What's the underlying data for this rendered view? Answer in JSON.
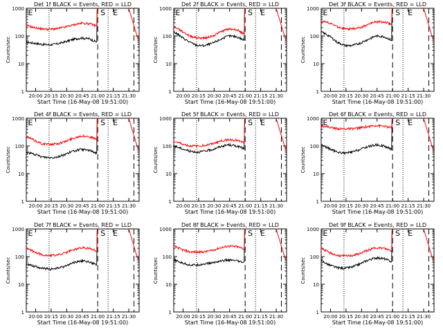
{
  "chart_data": [
    {
      "type": "line",
      "title": "Det 1f BLACK = Events, RED = LLD",
      "xlabel": "Start Time (16-May-08 19:51:00)",
      "ylabel": "Counts/sec",
      "ylim": [
        1,
        1000
      ],
      "yscale": "log",
      "markers": [
        "E",
        "S",
        "E"
      ],
      "black_base": [
        60,
        55,
        50,
        48,
        52,
        62,
        75,
        85,
        80,
        60
      ],
      "red_base": [
        240,
        200,
        180,
        175,
        185,
        210,
        250,
        290,
        280,
        230
      ]
    },
    {
      "type": "line",
      "title": "Det 2f BLACK = Events, RED = LLD",
      "xlabel": "Start Time (16-May-08 19:51:00)",
      "ylabel": "Counts/sec",
      "ylim": [
        1,
        1000
      ],
      "yscale": "log",
      "markers": [
        "E",
        "S",
        "E"
      ],
      "black_base": [
        140,
        90,
        60,
        45,
        45,
        55,
        75,
        100,
        95,
        70
      ],
      "red_base": [
        220,
        150,
        100,
        85,
        85,
        100,
        140,
        180,
        170,
        120
      ]
    },
    {
      "type": "line",
      "title": "Det 3f BLACK = Events, RED = LLD",
      "xlabel": "Start Time (16-May-08 19:51:00)",
      "ylabel": "Counts/sec",
      "ylim": [
        1,
        1000
      ],
      "yscale": "log",
      "markers": [
        "E",
        "S",
        "E"
      ],
      "black_base": [
        140,
        100,
        60,
        45,
        45,
        55,
        75,
        100,
        95,
        70
      ],
      "red_base": [
        350,
        300,
        220,
        180,
        180,
        200,
        260,
        330,
        320,
        260
      ]
    },
    {
      "type": "line",
      "title": "Det 4f BLACK = Events, RED = LLD",
      "xlabel": "Start Time (16-May-08 19:51:00)",
      "ylabel": "Counts/sec",
      "ylim": [
        1,
        1000
      ],
      "yscale": "log",
      "markers": [
        "E",
        "S",
        "E"
      ],
      "black_base": [
        60,
        50,
        40,
        38,
        40,
        50,
        65,
        75,
        70,
        55
      ],
      "red_base": [
        220,
        160,
        120,
        115,
        120,
        145,
        190,
        230,
        220,
        170
      ]
    },
    {
      "type": "line",
      "title": "Det 5f BLACK = Events, RED = LLD",
      "xlabel": "Start Time (16-May-08 19:51:00)",
      "ylabel": "Counts/sec",
      "ylim": [
        1,
        1000
      ],
      "yscale": "log",
      "markers": [
        "S",
        "E"
      ],
      "black_base": [
        100,
        80,
        65,
        60,
        65,
        75,
        95,
        110,
        100,
        80
      ],
      "red_base": [
        150,
        120,
        100,
        100,
        105,
        120,
        150,
        170,
        160,
        130
      ]
    },
    {
      "type": "line",
      "title": "Det 6f BLACK = Events, RED = LLD",
      "xlabel": "Start Time (16-May-08 19:51:00)",
      "ylabel": "Counts/sec",
      "ylim": [
        1,
        1000
      ],
      "yscale": "log",
      "markers": [
        "E",
        "S",
        "E"
      ],
      "black_base": [
        110,
        80,
        60,
        55,
        60,
        75,
        95,
        110,
        100,
        75
      ],
      "red_base": [
        550,
        480,
        420,
        410,
        420,
        450,
        500,
        550,
        520,
        450
      ]
    },
    {
      "type": "line",
      "title": "Det 7f BLACK = Events, RED = LLD",
      "xlabel": "Start Time (16-May-08 19:51:00)",
      "ylabel": "Counts/sec",
      "ylim": [
        1,
        1000
      ],
      "yscale": "log",
      "markers": [
        "E",
        "S",
        "E"
      ],
      "black_base": [
        55,
        45,
        38,
        35,
        38,
        45,
        60,
        70,
        65,
        50
      ],
      "red_base": [
        200,
        150,
        115,
        110,
        115,
        135,
        175,
        210,
        200,
        160
      ]
    },
    {
      "type": "line",
      "title": "Det 8f BLACK = Events, RED = LLD",
      "xlabel": "Start Time (16-May-08 19:51:00)",
      "ylabel": "Counts/sec",
      "ylim": [
        1,
        1000
      ],
      "yscale": "log",
      "markers": [
        "S",
        "E"
      ],
      "black_base": [
        75,
        60,
        50,
        50,
        55,
        60,
        70,
        75,
        70,
        60
      ],
      "red_base": [
        240,
        180,
        150,
        145,
        150,
        170,
        210,
        240,
        230,
        190
      ]
    },
    {
      "type": "line",
      "title": "Det 9f BLACK = Events, RED = LLD",
      "xlabel": "Start Time (16-May-08 19:51:00)",
      "ylabel": "Counts/sec",
      "ylim": [
        1,
        1000
      ],
      "yscale": "log",
      "markers": [
        "E",
        "S",
        "E"
      ],
      "black_base": [
        70,
        50,
        40,
        38,
        42,
        55,
        75,
        90,
        85,
        65
      ],
      "red_base": [
        200,
        140,
        110,
        105,
        110,
        130,
        170,
        210,
        200,
        160
      ]
    }
  ],
  "x_ticks": [
    "20:00",
    "20:15",
    "20:30",
    "20:45",
    "21:00",
    "21:15",
    "21:30"
  ],
  "y_ticks": [
    "1",
    "10",
    "100",
    "1000"
  ],
  "colors": {
    "events": "#000000",
    "lld": "#ff0000",
    "background": "#ffffff"
  }
}
